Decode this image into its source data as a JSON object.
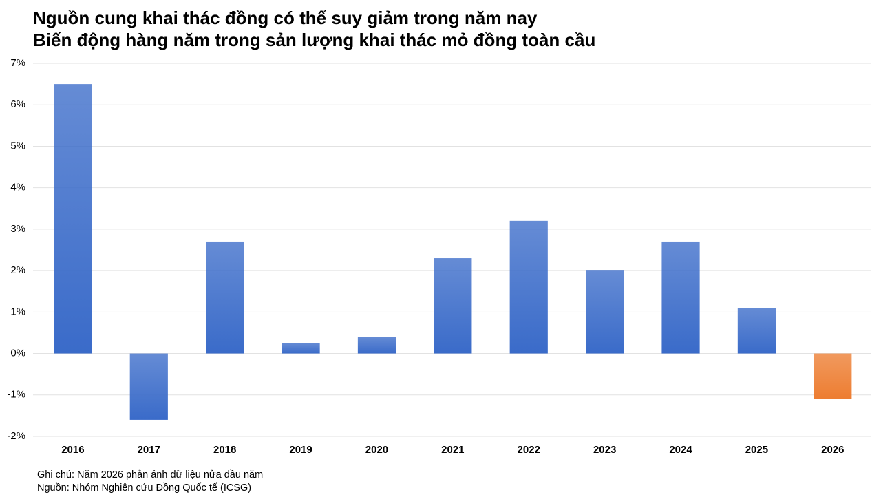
{
  "chart_data": {
    "type": "bar",
    "title": "Nguồn cung khai thác đồng có thể suy giảm trong năm nay",
    "subtitle": "Biến động hàng năm trong sản lượng khai thác mỏ đồng toàn cầu",
    "categories": [
      "2016",
      "2017",
      "2018",
      "2019",
      "2020",
      "2021",
      "2022",
      "2023",
      "2024",
      "2025",
      "2026"
    ],
    "values": [
      6.5,
      -1.6,
      2.7,
      0.25,
      0.4,
      2.3,
      3.2,
      2.0,
      2.7,
      1.1,
      -1.1
    ],
    "colors": [
      "#3a6bc9",
      "#3a6bc9",
      "#3a6bc9",
      "#3a6bc9",
      "#3a6bc9",
      "#3a6bc9",
      "#3a6bc9",
      "#3a6bc9",
      "#3a6bc9",
      "#3a6bc9",
      "#ed7d31"
    ],
    "ylim": [
      -2,
      7
    ],
    "yticks": [
      {
        "value": -2,
        "label": "-2%"
      },
      {
        "value": -1,
        "label": "-1%"
      },
      {
        "value": 0,
        "label": "0%"
      },
      {
        "value": 1,
        "label": "1%"
      },
      {
        "value": 2,
        "label": "2%"
      },
      {
        "value": 3,
        "label": "3%"
      },
      {
        "value": 4,
        "label": "4%"
      },
      {
        "value": 5,
        "label": "5%"
      },
      {
        "value": 6,
        "label": "6%"
      },
      {
        "value": 7,
        "label": "7%"
      }
    ],
    "grid": true,
    "notes": [
      "Ghi chú: Năm 2026 phản ánh dữ liệu nửa đầu năm",
      "Nguồn: Nhóm Nghiên cứu Đồng Quốc tế (ICSG)"
    ]
  }
}
